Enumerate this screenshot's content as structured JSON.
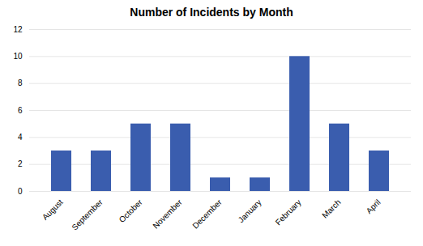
{
  "chart_data": {
    "type": "bar",
    "title": "Number of Incidents by Month",
    "categories": [
      "August",
      "September",
      "October",
      "November",
      "December",
      "January",
      "February",
      "March",
      "April"
    ],
    "values": [
      3,
      3,
      5,
      5,
      1,
      1,
      10,
      5,
      3
    ],
    "color": "#3A5DAE",
    "ylim": [
      0,
      12
    ],
    "yticks": [
      0,
      2,
      4,
      6,
      8,
      10,
      12
    ],
    "grid": true
  }
}
